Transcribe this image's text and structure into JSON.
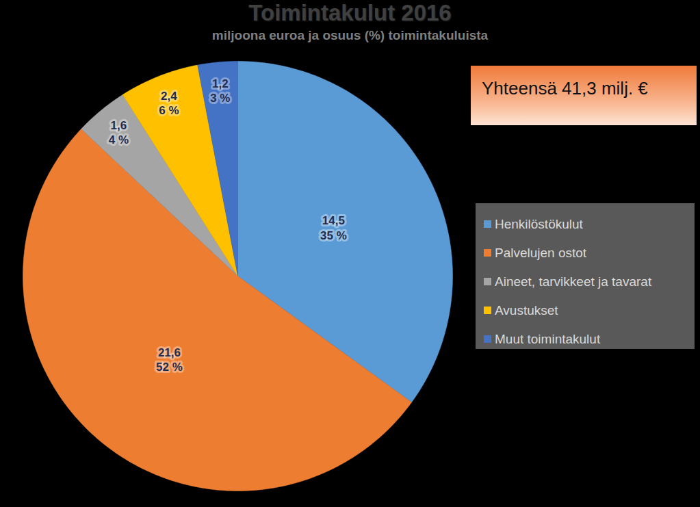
{
  "chart_data": {
    "type": "pie",
    "title": "Toimintakulut 2016",
    "subtitle": "miljoona euroa ja osuus (%) toimintakuluista",
    "annotation": "Yhteensä 41,3 milj. €",
    "categories": [
      "Henkilöstökulut",
      "Palvelujen ostot",
      "Aineet, tarvikkeet ja tavarat",
      "Avustukset",
      "Muut toimintakulut"
    ],
    "values": [
      35,
      52,
      4,
      6,
      3
    ],
    "value_labels": [
      "35 %",
      "52 %",
      "4 %",
      "6 %",
      "3 %"
    ],
    "amounts": [
      14.5,
      21.6,
      1.6,
      2.4,
      1.2
    ],
    "amount_labels": [
      "14,5",
      "21,6",
      "1,6",
      "2,4",
      "1,2"
    ],
    "colors": [
      "#5b9bd5",
      "#ed7d31",
      "#a5a5a5",
      "#ffc000",
      "#4472c4"
    ],
    "data_labels": true,
    "legend": "right",
    "tick_labels": false
  }
}
